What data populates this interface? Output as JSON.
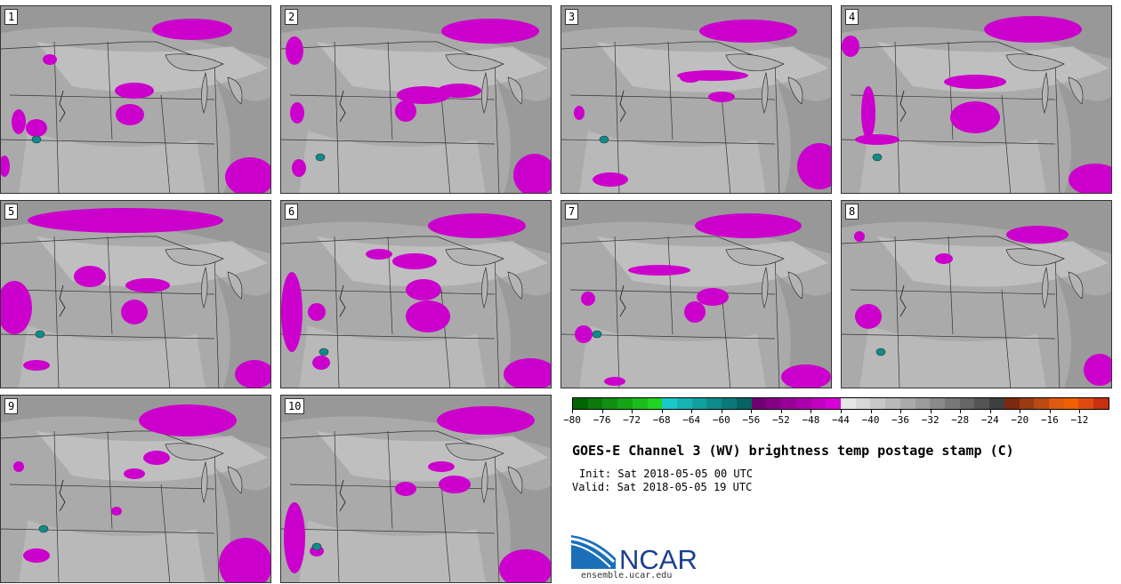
{
  "panels": [
    {
      "label": "1"
    },
    {
      "label": "2"
    },
    {
      "label": "3"
    },
    {
      "label": "4"
    },
    {
      "label": "5"
    },
    {
      "label": "6"
    },
    {
      "label": "7"
    },
    {
      "label": "8"
    },
    {
      "label": "9"
    },
    {
      "label": "10"
    }
  ],
  "colorbar": {
    "colors": [
      "#006400",
      "#0b7a0b",
      "#108f10",
      "#15a515",
      "#1bbd1b",
      "#21d421",
      "#19c8c8",
      "#15b4b4",
      "#11a0a0",
      "#0d8c8c",
      "#0a7878",
      "#076464",
      "#720072",
      "#850085",
      "#990099",
      "#ad00ad",
      "#c200c2",
      "#d700d7",
      "#e6e6e6",
      "#d7d7d7",
      "#c8c8c8",
      "#b9b9b9",
      "#aaaaaa",
      "#9b9b9b",
      "#8a8a8a",
      "#787878",
      "#666666",
      "#545454",
      "#3f3f3f",
      "#7a2a10",
      "#9a3a12",
      "#bb4a14",
      "#dd5a10",
      "#ee6000",
      "#e04a10",
      "#c83010"
    ],
    "ticks": [
      "−80",
      "−76",
      "−72",
      "−68",
      "−64",
      "−60",
      "−56",
      "−52",
      "−48",
      "−44",
      "−40",
      "−36",
      "−32",
      "−28",
      "−24",
      "−20",
      "−16",
      "−12"
    ],
    "vmin": -80,
    "vmax": -8
  },
  "title": "GOES-E Channel 3 (WV) brightness temp postage stamp (C)",
  "init": "Init: Sat 2018-05-05 00 UTC",
  "valid": "Valid: Sat 2018-05-05 19 UTC",
  "logo": {
    "text": "NCAR",
    "url": "ensemble.ucar.edu",
    "color": "#1b3f8f"
  },
  "colors": {
    "cold_cloud": "#cc00cc",
    "gray_dark": "#8c8c8c",
    "gray_mid": "#aaaaaa",
    "gray_light": "#c8c8c8",
    "lake": "#b4b4b4"
  }
}
